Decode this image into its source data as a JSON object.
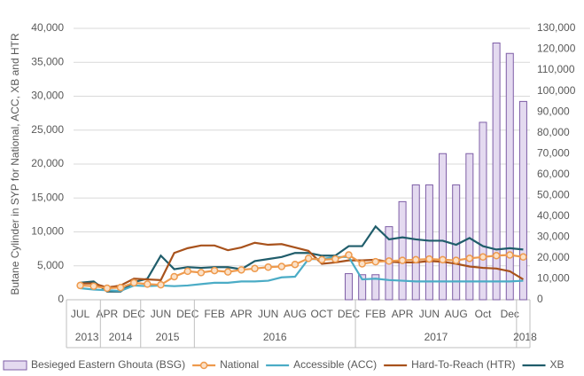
{
  "chart_data": {
    "type": "bar_line",
    "ylabel": "Butane Cylinder in SYP for National, ACC, XB and HTR",
    "categories": [
      "JUL",
      null,
      "APR",
      null,
      "DEC",
      null,
      "JUN",
      null,
      "DEC",
      null,
      "FEB",
      null,
      "APR",
      null,
      "JUN",
      null,
      "AUG",
      null,
      "OCT",
      null,
      "DEC",
      null,
      "FEB",
      null,
      "APR",
      null,
      "JUN",
      null,
      "AUG",
      null,
      "Oct",
      null,
      "Dec",
      null
    ],
    "years": [
      "2013",
      null,
      "2014",
      null,
      null,
      "2015",
      null,
      null,
      null,
      "2016",
      null,
      null,
      null,
      null,
      null,
      null,
      null,
      null,
      null,
      null,
      null,
      "2017",
      null,
      null,
      null,
      null,
      null,
      null,
      null,
      null,
      null,
      null,
      null,
      "2018"
    ],
    "ylim": [
      0,
      40000
    ],
    "yticks": [
      0,
      {
        "value": 5000,
        "label": "5,000"
      },
      {
        "value": 10000,
        "label": "10,000"
      },
      {
        "value": 15000,
        "label": "15,000"
      },
      {
        "value": 20000,
        "label": "20,000"
      },
      {
        "value": 25000,
        "label": "25,000"
      },
      {
        "value": 30000,
        "label": "30,000"
      },
      {
        "value": 35000,
        "label": "35,000"
      },
      {
        "value": 40000,
        "label": "40,000"
      }
    ],
    "y2lim": [
      0,
      130000
    ],
    "y2ticks": [
      0,
      {
        "value": 10000,
        "label": "10,000"
      },
      {
        "value": 20000,
        "label": "20,000"
      },
      {
        "value": 30000,
        "label": "30,000"
      },
      {
        "value": 40000,
        "label": "40,000"
      },
      {
        "value": 50000,
        "label": "50,000"
      },
      {
        "value": 60000,
        "label": "60,000"
      },
      {
        "value": 70000,
        "label": "70,000"
      },
      {
        "value": 80000,
        "label": "80,000"
      },
      {
        "value": 90000,
        "label": "90,000"
      },
      {
        "value": 100000,
        "label": "100,000"
      },
      {
        "value": 110000,
        "label": "110,000"
      },
      {
        "value": 120000,
        "label": "120,000"
      },
      {
        "value": 130000,
        "label": "130,000"
      }
    ],
    "grid": true,
    "legend": "bottom",
    "series": [
      {
        "name": "Besieged Eastern Ghouta (BSG)",
        "type": "bar",
        "axis": "y2",
        "color": "#e4daf0",
        "edge": "#7e5ea6",
        "values": [
          null,
          null,
          null,
          null,
          null,
          null,
          null,
          null,
          null,
          null,
          null,
          null,
          null,
          null,
          null,
          null,
          null,
          null,
          null,
          null,
          12500,
          12000,
          12000,
          35000,
          47000,
          55000,
          55000,
          70000,
          55000,
          70000,
          85000,
          123000,
          118000,
          95000
        ]
      },
      {
        "name": "National",
        "type": "line",
        "marker": true,
        "color": "#ee9a4d",
        "values": [
          2100,
          2000,
          1700,
          1800,
          2500,
          2300,
          2200,
          3400,
          4200,
          4000,
          4300,
          4100,
          4400,
          4600,
          4800,
          4900,
          5200,
          6100,
          5900,
          6000,
          6600,
          5300,
          5600,
          5700,
          5800,
          5900,
          6000,
          5900,
          5800,
          6100,
          6300,
          6500,
          6600,
          6300
        ]
      },
      {
        "name": "Accessible (ACC)",
        "type": "line",
        "color": "#4bacc6",
        "values": [
          1700,
          1500,
          1400,
          1300,
          2100,
          2000,
          2100,
          2000,
          2100,
          2300,
          2500,
          2500,
          2700,
          2700,
          2800,
          3300,
          3400,
          6000,
          6000,
          6300,
          6300,
          3000,
          3100,
          2900,
          2800,
          2700,
          2700,
          2700,
          2700,
          2700,
          2700,
          2700,
          2700,
          2800
        ]
      },
      {
        "name": "Hard-To-Reach (HTR)",
        "type": "line",
        "color": "#a8521c",
        "values": [
          2400,
          2400,
          1800,
          2100,
          3100,
          3000,
          2900,
          6900,
          7600,
          8000,
          8000,
          7300,
          7700,
          8400,
          8100,
          8200,
          7700,
          7200,
          5300,
          5500,
          5800,
          5800,
          5900,
          5600,
          5500,
          5500,
          5700,
          5600,
          5300,
          4900,
          4700,
          4600,
          4200,
          3000
        ]
      },
      {
        "name": "XB",
        "type": "line",
        "color": "#205d6b",
        "values": [
          2500,
          2700,
          1200,
          1200,
          2600,
          3100,
          6500,
          4500,
          4800,
          4700,
          4800,
          4800,
          4500,
          5700,
          6000,
          6300,
          6900,
          6900,
          6500,
          6500,
          7900,
          7900,
          10800,
          8900,
          9200,
          8900,
          8700,
          8700,
          8100,
          9100,
          7900,
          7400,
          7600,
          7400
        ]
      }
    ]
  }
}
